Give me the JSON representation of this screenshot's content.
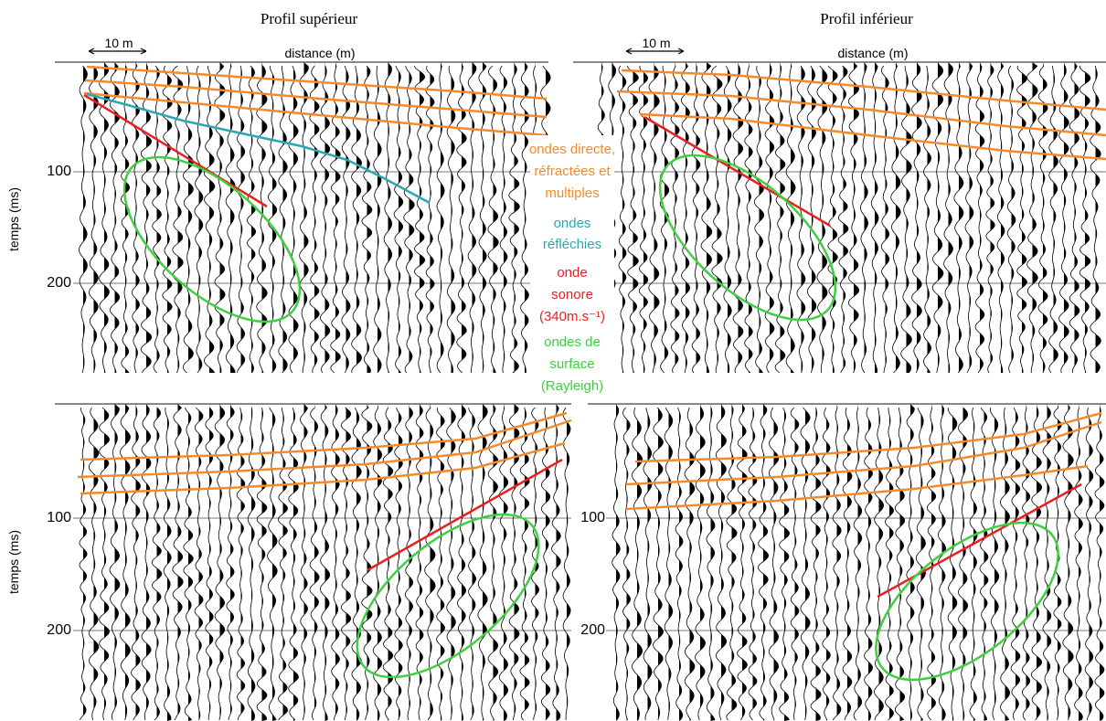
{
  "panels": {
    "top_left": {
      "title": "Profil supérieur",
      "scale_label": "10 m",
      "x_label": "distance (m)",
      "y_label": "temps (ms)",
      "y_ticks": [
        "100",
        "200"
      ]
    },
    "top_right": {
      "title": "Profil inférieur",
      "scale_label": "10 m",
      "x_label": "distance (m)",
      "y_ticks": [
        "100",
        "200"
      ]
    },
    "bottom_left": {
      "y_label": "temps (ms)",
      "y_ticks": [
        "100",
        "200"
      ]
    },
    "bottom_right": {
      "y_ticks": [
        "100",
        "200"
      ]
    }
  },
  "legend": [
    {
      "lines": [
        "ondes directe,",
        "réfractées et",
        "multiples"
      ]
    },
    {
      "lines": [
        "ondes",
        "réfléchies"
      ]
    },
    {
      "lines": [
        "onde",
        "sonore",
        "(340m.s⁻¹)"
      ]
    },
    {
      "lines": [
        "ondes de",
        "surface",
        "(Rayleigh)"
      ]
    }
  ]
}
